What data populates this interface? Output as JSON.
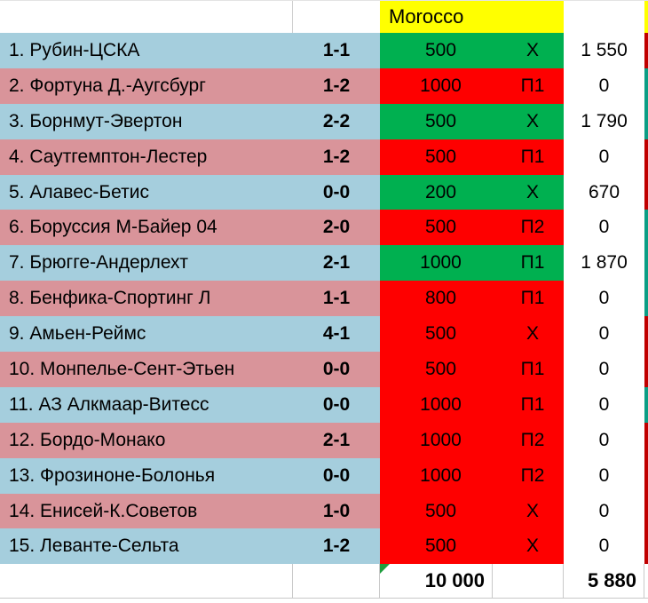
{
  "header": {
    "title": "Morocco"
  },
  "rows": [
    {
      "name": "1. Рубин-ЦСКА",
      "score": "1-1",
      "stake": "500",
      "pick": "X",
      "payout": "1 550",
      "result": "win",
      "tint": "blue",
      "edge": "red"
    },
    {
      "name": "2. Фортуна Д.-Аугсбург",
      "score": "1-2",
      "stake": "1000",
      "pick": "П1",
      "payout": "0",
      "result": "loss",
      "tint": "pink",
      "edge": "green"
    },
    {
      "name": "3. Борнмут-Эвертон",
      "score": "2-2",
      "stake": "500",
      "pick": "X",
      "payout": "1 790",
      "result": "win",
      "tint": "blue",
      "edge": "green"
    },
    {
      "name": "4. Саутгемптон-Лестер",
      "score": "1-2",
      "stake": "500",
      "pick": "П1",
      "payout": "0",
      "result": "loss",
      "tint": "pink",
      "edge": "red"
    },
    {
      "name": "5. Алавес-Бетис",
      "score": "0-0",
      "stake": "200",
      "pick": "X",
      "payout": "670",
      "result": "win",
      "tint": "blue",
      "edge": "red"
    },
    {
      "name": "6. Боруссия М-Байер 04",
      "score": "2-0",
      "stake": "500",
      "pick": "П2",
      "payout": "0",
      "result": "loss",
      "tint": "pink",
      "edge": "green"
    },
    {
      "name": "7. Брюгге-Андерлехт",
      "score": "2-1",
      "stake": "1000",
      "pick": "П1",
      "payout": "1 870",
      "result": "win",
      "tint": "blue",
      "edge": "green"
    },
    {
      "name": "8. Бенфика-Спортинг Л",
      "score": "1-1",
      "stake": "800",
      "pick": "П1",
      "payout": "0",
      "result": "loss",
      "tint": "pink",
      "edge": "green"
    },
    {
      "name": "9. Амьен-Реймс",
      "score": "4-1",
      "stake": "500",
      "pick": "X",
      "payout": "0",
      "result": "loss",
      "tint": "blue",
      "edge": "red"
    },
    {
      "name": "10. Монпелье-Сент-Этьен",
      "score": "0-0",
      "stake": "500",
      "pick": "П1",
      "payout": "0",
      "result": "loss",
      "tint": "pink",
      "edge": "red"
    },
    {
      "name": "11. АЗ Алкмаар-Витесс",
      "score": "0-0",
      "stake": "1000",
      "pick": "П1",
      "payout": "0",
      "result": "loss",
      "tint": "blue",
      "edge": "green"
    },
    {
      "name": "12. Бордо-Монако",
      "score": "2-1",
      "stake": "1000",
      "pick": "П2",
      "payout": "0",
      "result": "loss",
      "tint": "pink",
      "edge": "red"
    },
    {
      "name": "13. Фрозиноне-Болонья",
      "score": "0-0",
      "stake": "1000",
      "pick": "П2",
      "payout": "0",
      "result": "loss",
      "tint": "blue",
      "edge": "red"
    },
    {
      "name": "14. Енисей-К.Советов",
      "score": "1-0",
      "stake": "500",
      "pick": "X",
      "payout": "0",
      "result": "loss",
      "tint": "pink",
      "edge": "red"
    },
    {
      "name": "15. Леванте-Сельта",
      "score": "1-2",
      "stake": "500",
      "pick": "X",
      "payout": "0",
      "result": "loss",
      "tint": "blue",
      "edge": "red"
    }
  ],
  "footer": {
    "total_stake": "10 000",
    "total_payout": "5 880"
  },
  "colors": {
    "blue": "#A5CEDD",
    "pink": "#D9949A",
    "win": "#00B050",
    "loss": "#FE0000",
    "yellow": "#FFFF00",
    "edge_red": "#C00000",
    "edge_green": "#0B9E85",
    "indicator_green": "#1F9E3D"
  }
}
